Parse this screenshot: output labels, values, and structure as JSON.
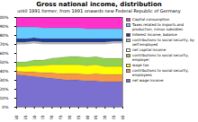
{
  "chart_data": {
    "type": "area",
    "stacked": true,
    "title": "Gross national income, distribution",
    "subtitle": "until 1991 former, from 1991 onwards new Federal Republic of Germany",
    "x": [
      1950,
      1955,
      1960,
      1965,
      1970,
      1975,
      1980,
      1985,
      1990,
      1995,
      2000,
      2005,
      2010
    ],
    "xlim": [
      1950,
      2010
    ],
    "xticks": [
      1950,
      1955,
      1960,
      1965,
      1970,
      1975,
      1980,
      1985,
      1990,
      1995,
      2000,
      2005,
      2010
    ],
    "ylim": [
      0,
      100
    ],
    "yticks": [
      {
        "value": 0,
        "label": "0%"
      },
      {
        "value": 10,
        "label": "10%"
      },
      {
        "value": 20,
        "label": "20%"
      },
      {
        "value": 30,
        "label": "30%"
      },
      {
        "value": 40,
        "label": "40%"
      },
      {
        "value": 50,
        "label": "50%"
      },
      {
        "value": 60,
        "label": "60%"
      },
      {
        "value": 70,
        "label": "70%"
      },
      {
        "value": 80,
        "label": "80%"
      },
      {
        "value": 90,
        "label": "90%"
      },
      {
        "value": 100,
        "label": "100%"
      }
    ],
    "legend": "right",
    "series": [
      {
        "name": "net wage income",
        "color": "#7b6fd0",
        "values": [
          36,
          35,
          34,
          33,
          32,
          31,
          30,
          30,
          29,
          29,
          28,
          28,
          28
        ]
      },
      {
        "name": "contributions to social security, employees",
        "color": "#f79646",
        "values": [
          4,
          4,
          5,
          5,
          6,
          6,
          7,
          7,
          7,
          8,
          8,
          8,
          8
        ]
      },
      {
        "name": "wage tax",
        "color": "#ffff00",
        "values": [
          5,
          6,
          7,
          8,
          9,
          10,
          10,
          10,
          10,
          10,
          9,
          9,
          9
        ]
      },
      {
        "name": "contributions to social security, employer",
        "color": "#92d050",
        "values": [
          5,
          5,
          6,
          6,
          7,
          8,
          9,
          9,
          9,
          9,
          9,
          9,
          9
        ]
      },
      {
        "name": "net capital income",
        "color": "#ffffff",
        "values": [
          20,
          20,
          19,
          18,
          16,
          15,
          14,
          14,
          15,
          14,
          16,
          17,
          17
        ]
      },
      {
        "name": "contributions to social security, by self employed",
        "color": "#c0c0c0",
        "values": [
          2,
          2,
          2,
          2,
          2,
          2,
          2,
          2,
          2,
          2,
          2,
          2,
          2
        ]
      },
      {
        "name": "Interest income, balance",
        "color": "#1f3a93",
        "values": [
          4,
          4,
          4,
          4,
          4,
          4,
          4,
          4,
          4,
          4,
          4,
          3,
          3
        ]
      },
      {
        "name": "Taxes related to imports and production, minus subsidies",
        "color": "#66ccff",
        "values": [
          13,
          13,
          12,
          12,
          12,
          12,
          12,
          12,
          11,
          11,
          11,
          11,
          11
        ]
      },
      {
        "name": "Capital consumption",
        "color": "#ff33cc",
        "values": [
          11,
          11,
          11,
          12,
          12,
          12,
          12,
          12,
          13,
          13,
          13,
          13,
          13
        ]
      }
    ]
  }
}
